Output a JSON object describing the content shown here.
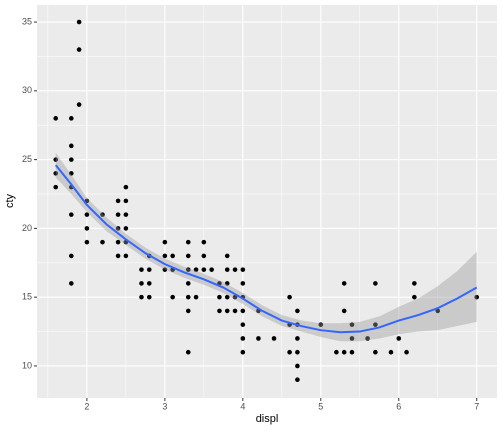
{
  "chart_data": {
    "type": "scatter",
    "x_label": "displ",
    "y_label": "cty",
    "xlim": [
      1.36,
      7.26
    ],
    "ylim": [
      7.67,
      36.24
    ],
    "xticks": [
      2,
      3,
      4,
      5,
      6,
      7
    ],
    "yticks": [
      10,
      15,
      20,
      25,
      30,
      35
    ],
    "xminorticks": [
      1.5,
      2.5,
      3.5,
      4.5,
      5.5,
      6.5
    ],
    "yminorticks": [
      12.5,
      17.5,
      22.5,
      27.5,
      32.5
    ],
    "grid": true,
    "point_color": "#000000",
    "x": [
      1.6,
      1.6,
      1.6,
      1.6,
      1.8,
      1.8,
      1.8,
      1.8,
      1.8,
      1.8,
      1.8,
      1.8,
      1.9,
      1.9,
      1.9,
      2.0,
      2.0,
      2.0,
      2.0,
      2.2,
      2.2,
      2.4,
      2.4,
      2.4,
      2.4,
      2.4,
      2.5,
      2.5,
      2.5,
      2.5,
      2.5,
      2.5,
      2.7,
      2.7,
      2.7,
      2.8,
      2.8,
      2.8,
      2.8,
      3.0,
      3.0,
      3.0,
      3.1,
      3.1,
      3.1,
      3.3,
      3.3,
      3.3,
      3.3,
      3.3,
      3.3,
      3.3,
      3.4,
      3.4,
      3.5,
      3.5,
      3.5,
      3.6,
      3.7,
      3.7,
      3.7,
      3.8,
      3.8,
      3.8,
      3.8,
      3.8,
      3.9,
      3.9,
      3.9,
      4.0,
      4.0,
      4.0,
      4.0,
      4.0,
      4.0,
      4.0,
      4.2,
      4.2,
      4.4,
      4.6,
      4.6,
      4.6,
      4.7,
      4.7,
      4.7,
      4.7,
      4.7,
      4.7,
      5.0,
      5.2,
      5.3,
      5.3,
      5.3,
      5.4,
      5.4,
      5.4,
      5.6,
      5.7,
      5.7,
      5.7,
      5.9,
      6.0,
      6.1,
      6.2,
      6.2,
      6.5,
      7.0
    ],
    "y": [
      23,
      24,
      25,
      28,
      16,
      18,
      21,
      24,
      25,
      26,
      28,
      23,
      35,
      33,
      29,
      22,
      21,
      20,
      19,
      21,
      19,
      22,
      21,
      20,
      19,
      18,
      23,
      22,
      21,
      20,
      19,
      18,
      17,
      16,
      15,
      18,
      17,
      16,
      15,
      19,
      18,
      17,
      18,
      17,
      15,
      19,
      18,
      17,
      16,
      15,
      14,
      11,
      17,
      15,
      19,
      18,
      17,
      17,
      16,
      15,
      14,
      18,
      17,
      16,
      15,
      14,
      17,
      15,
      14,
      17,
      16,
      15,
      14,
      13,
      12,
      11,
      14,
      12,
      12,
      15,
      13,
      11,
      14,
      13,
      12,
      11,
      10,
      9,
      13,
      11,
      16,
      14,
      11,
      13,
      12,
      11,
      12,
      16,
      13,
      11,
      11,
      12,
      11,
      16,
      15,
      14,
      15
    ],
    "smooth": {
      "color": "#3366FF",
      "band_color": "#999999",
      "x": [
        1.6,
        1.8,
        2.0,
        2.25,
        2.5,
        2.75,
        3.0,
        3.25,
        3.5,
        3.75,
        4.0,
        4.25,
        4.5,
        4.75,
        5.0,
        5.25,
        5.5,
        5.75,
        6.0,
        6.25,
        6.5,
        6.75,
        7.0
      ],
      "y": [
        24.6,
        23.2,
        21.7,
        20.3,
        19.2,
        18.2,
        17.4,
        16.8,
        16.3,
        15.7,
        14.9,
        14.0,
        13.3,
        12.9,
        12.6,
        12.45,
        12.5,
        12.8,
        13.3,
        13.7,
        14.2,
        14.9,
        15.7
      ],
      "ymin": [
        23.7,
        22.5,
        21.2,
        19.8,
        18.8,
        17.8,
        17.0,
        16.4,
        15.9,
        15.3,
        14.5,
        13.6,
        12.9,
        12.5,
        12.1,
        11.8,
        11.8,
        12.0,
        12.3,
        12.5,
        12.6,
        12.9,
        13.2
      ],
      "ymax": [
        25.5,
        23.9,
        22.2,
        20.8,
        19.6,
        18.6,
        17.8,
        17.2,
        16.7,
        16.1,
        15.3,
        14.4,
        13.7,
        13.3,
        13.1,
        13.1,
        13.2,
        13.6,
        14.3,
        14.9,
        15.8,
        16.9,
        18.3
      ]
    }
  }
}
